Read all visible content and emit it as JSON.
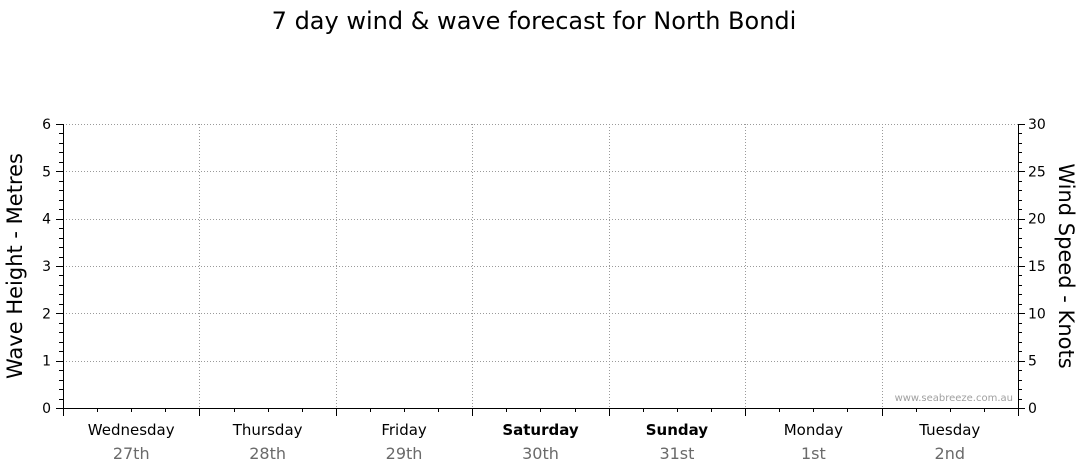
{
  "chart_data": {
    "type": "line",
    "title": "7 day wind & wave forecast for North Bondi",
    "ylabel": "Wave Height - Metres",
    "y2label": "Wind Speed - Knots",
    "ylim": [
      0,
      6
    ],
    "y2lim": [
      0,
      30
    ],
    "yticks": [
      "0",
      "1",
      "2",
      "3",
      "4",
      "5",
      "6"
    ],
    "y2ticks": [
      "0",
      "5",
      "10",
      "15",
      "20",
      "25",
      "30"
    ],
    "grid": true,
    "days": [
      {
        "day": "Wednesday",
        "date": "27th",
        "weekend": false
      },
      {
        "day": "Thursday",
        "date": "28th",
        "weekend": false
      },
      {
        "day": "Friday",
        "date": "29th",
        "weekend": false
      },
      {
        "day": "Saturday",
        "date": "30th",
        "weekend": true
      },
      {
        "day": "Sunday",
        "date": "31st",
        "weekend": true
      },
      {
        "day": "Monday",
        "date": "1st",
        "weekend": false
      },
      {
        "day": "Tuesday",
        "date": "2nd",
        "weekend": false
      }
    ],
    "series": []
  },
  "watermark": "www.seabreeze.com.au",
  "colors": {
    "axis": "#000000",
    "grid": "#9a9a9a",
    "date_text": "#6a6a6a",
    "watermark": "#a0a0a0"
  }
}
